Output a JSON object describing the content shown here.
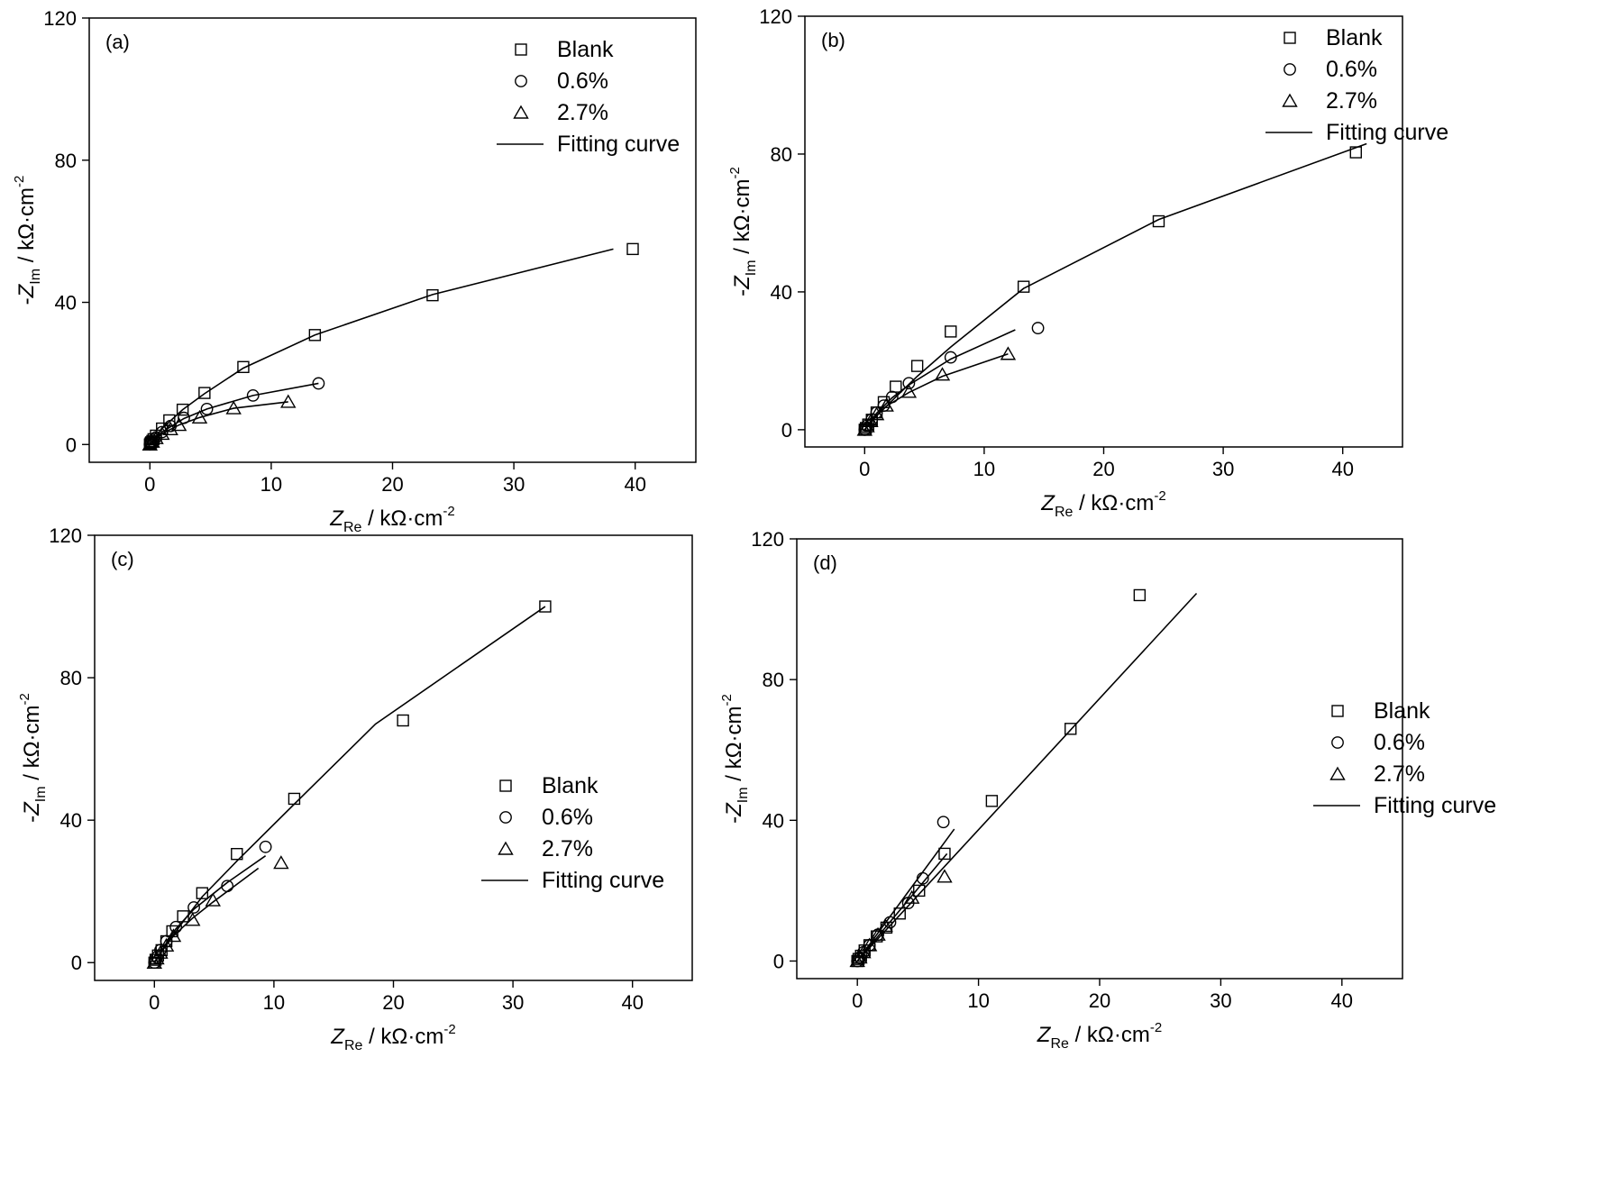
{
  "chart_data": [
    {
      "type": "scatter",
      "panel_label": "(a)",
      "xlabel": {
        "main": "Z",
        "sub": "Re",
        "unit": " / kΩ·cm",
        "sup": "-2"
      },
      "ylabel": {
        "prefix": "-",
        "main": "Z",
        "sub": "Im",
        "unit": " / kΩ·cm",
        "sup": "-2"
      },
      "xlim": [
        -5,
        45
      ],
      "ylim": [
        -5,
        120
      ],
      "xticks": [
        0,
        10,
        20,
        30,
        40
      ],
      "yticks": [
        0,
        40,
        80,
        120
      ],
      "legend": {
        "position": "top-right",
        "entries": [
          "Blank",
          "0.6%",
          "2.7%",
          "Fitting curve"
        ]
      },
      "series": [
        {
          "name": "Blank",
          "marker": "square",
          "x": [
            0.0,
            0.05,
            0.1,
            0.2,
            0.3,
            0.5,
            1.0,
            1.6,
            2.7,
            4.5,
            7.7,
            13.6,
            23.3,
            39.8
          ],
          "y": [
            0.0,
            0.3,
            0.6,
            1.0,
            1.5,
            2.5,
            4.5,
            6.8,
            9.8,
            14.5,
            21.8,
            30.8,
            42.0,
            55.0
          ],
          "fit_x": [
            0,
            1,
            2.7,
            4.5,
            7.7,
            13.6,
            23.3,
            38.2
          ],
          "fit_y": [
            0,
            4.5,
            9.8,
            14.3,
            21.5,
            30.8,
            42.2,
            55.0
          ]
        },
        {
          "name": "0.6%",
          "marker": "circle",
          "x": [
            0.0,
            0.2,
            0.5,
            1.0,
            1.7,
            2.8,
            4.7,
            8.5,
            13.9
          ],
          "y": [
            0.0,
            1.0,
            2.0,
            3.5,
            5.2,
            7.5,
            10.0,
            13.8,
            17.2
          ],
          "fit_x": [
            0,
            1.0,
            2.8,
            4.7,
            8.5,
            13.9
          ],
          "fit_y": [
            0,
            3.5,
            7.3,
            10.0,
            13.8,
            17.2
          ]
        },
        {
          "name": "2.7%",
          "marker": "triangle",
          "x": [
            0.0,
            0.2,
            0.5,
            1.0,
            1.7,
            2.4,
            4.1,
            6.9,
            11.4
          ],
          "y": [
            0.0,
            0.8,
            1.8,
            3.0,
            4.3,
            5.5,
            7.6,
            10.2,
            12.0
          ],
          "fit_x": [
            0,
            1.0,
            2.4,
            4.1,
            6.9,
            11.4
          ],
          "fit_y": [
            0,
            3.0,
            5.5,
            7.6,
            10.2,
            12.0
          ]
        }
      ]
    },
    {
      "type": "scatter",
      "panel_label": "(b)",
      "xlabel": {
        "main": "Z",
        "sub": "Re",
        "unit": " / kΩ·cm",
        "sup": "-2"
      },
      "ylabel": {
        "prefix": "-",
        "main": "Z",
        "sub": "Im",
        "unit": " / kΩ·cm",
        "sup": "-2"
      },
      "xlim": [
        -5,
        45
      ],
      "ylim": [
        -5,
        120
      ],
      "xticks": [
        0,
        10,
        20,
        30,
        40
      ],
      "yticks": [
        0,
        40,
        80,
        120
      ],
      "legend": {
        "position": "top-right",
        "entries": [
          "Blank",
          "0.6%",
          "2.7%",
          "Fitting curve"
        ]
      },
      "series": [
        {
          "name": "Blank",
          "marker": "square",
          "x": [
            0.0,
            0.1,
            0.3,
            0.6,
            1.0,
            1.6,
            2.6,
            4.4,
            7.2,
            13.3,
            24.6,
            41.1
          ],
          "y": [
            0.0,
            0.5,
            1.5,
            2.9,
            5.0,
            8.0,
            12.5,
            18.5,
            28.5,
            41.5,
            60.5,
            80.5
          ],
          "fit_x": [
            0,
            1.0,
            2.6,
            4.4,
            7.2,
            13.3,
            24.6,
            42.0
          ],
          "fit_y": [
            0,
            4.0,
            9.5,
            15.5,
            24.0,
            41.0,
            61.0,
            83.0
          ]
        },
        {
          "name": "0.6%",
          "marker": "circle",
          "x": [
            0.0,
            0.2,
            0.6,
            1.0,
            1.6,
            2.3,
            3.7,
            7.2,
            14.5
          ],
          "y": [
            0.0,
            1.2,
            3.0,
            5.0,
            7.0,
            9.5,
            13.5,
            21.0,
            29.5
          ],
          "fit_x": [
            0,
            1.0,
            2.3,
            3.7,
            7.2,
            12.6
          ],
          "fit_y": [
            0,
            4.8,
            9.3,
            13.0,
            20.5,
            29.0
          ]
        },
        {
          "name": "2.7%",
          "marker": "triangle",
          "x": [
            0.0,
            0.2,
            0.5,
            1.0,
            1.8,
            3.7,
            6.5,
            12.0
          ],
          "y": [
            0.0,
            1.0,
            2.5,
            4.5,
            7.0,
            11.0,
            16.0,
            22.0
          ],
          "fit_x": [
            0,
            1.0,
            1.8,
            3.7,
            6.5,
            12.0
          ],
          "fit_y": [
            0,
            4.2,
            6.8,
            10.8,
            15.5,
            22.0
          ]
        }
      ]
    },
    {
      "type": "scatter",
      "panel_label": "(c)",
      "xlabel": {
        "main": "Z",
        "sub": "Re",
        "unit": " / kΩ·cm",
        "sup": "-2"
      },
      "ylabel": {
        "prefix": "-",
        "main": "Z",
        "sub": "Im",
        "unit": " / kΩ·cm",
        "sup": "-2"
      },
      "xlim": [
        -5,
        45
      ],
      "ylim": [
        -5,
        120
      ],
      "xticks": [
        0,
        10,
        20,
        30,
        40
      ],
      "yticks": [
        0,
        40,
        80,
        120
      ],
      "legend": {
        "position": "center-right",
        "entries": [
          "Blank",
          "0.6%",
          "2.7%",
          "Fitting curve"
        ]
      },
      "series": [
        {
          "name": "Blank",
          "marker": "square",
          "x": [
            0.0,
            0.1,
            0.3,
            0.6,
            1.0,
            1.5,
            2.4,
            4.0,
            6.9,
            11.7,
            20.8,
            32.7
          ],
          "y": [
            0.0,
            0.8,
            2.0,
            3.5,
            6.0,
            8.8,
            13.0,
            19.5,
            30.5,
            46.0,
            68.0,
            100.0
          ],
          "fit_x": [
            0,
            1.0,
            2.4,
            4.0,
            6.9,
            11.7,
            18.5,
            32.7
          ],
          "fit_y": [
            0,
            5.0,
            11.5,
            18.5,
            28.5,
            44.5,
            67.0,
            100.0
          ]
        },
        {
          "name": "0.6%",
          "marker": "circle",
          "x": [
            0.0,
            0.2,
            0.5,
            1.0,
            1.8,
            3.3,
            6.1,
            9.3
          ],
          "y": [
            0.0,
            1.5,
            3.5,
            6.0,
            10.0,
            15.5,
            21.5,
            32.5
          ],
          "fit_x": [
            0,
            1.0,
            1.8,
            3.3,
            6.1,
            9.3
          ],
          "fit_y": [
            0,
            5.5,
            9.5,
            15.0,
            22.5,
            30.0
          ]
        },
        {
          "name": "2.7%",
          "marker": "triangle",
          "x": [
            0.0,
            0.2,
            0.5,
            1.0,
            1.6,
            3.2,
            4.9,
            10.6
          ],
          "y": [
            0.0,
            1.2,
            2.8,
            4.8,
            7.5,
            12.0,
            17.5,
            28.0
          ],
          "fit_x": [
            0,
            1.0,
            1.6,
            3.2,
            4.9,
            8.7
          ],
          "fit_y": [
            0,
            5.0,
            7.5,
            12.5,
            17.0,
            26.5
          ]
        }
      ]
    },
    {
      "type": "scatter",
      "panel_label": "(d)",
      "xlabel": {
        "main": "Z",
        "sub": "Re",
        "unit": " / kΩ·cm",
        "sup": "-2"
      },
      "ylabel": {
        "prefix": "-",
        "main": "Z",
        "sub": "Im",
        "unit": " / kΩ·cm",
        "sup": "-2"
      },
      "xlim": [
        -5,
        45
      ],
      "ylim": [
        -5,
        120
      ],
      "xticks": [
        0,
        10,
        20,
        30,
        40
      ],
      "yticks": [
        0,
        40,
        80,
        120
      ],
      "legend": {
        "position": "center-right",
        "entries": [
          "Blank",
          "0.6%",
          "2.7%",
          "Fitting curve"
        ]
      },
      "series": [
        {
          "name": "Blank",
          "marker": "square",
          "x": [
            0.0,
            0.1,
            0.3,
            0.6,
            1.0,
            1.6,
            2.4,
            3.5,
            5.1,
            7.2,
            11.1,
            17.6,
            23.3
          ],
          "y": [
            0.0,
            0.6,
            1.5,
            3.0,
            4.5,
            7.0,
            9.5,
            13.5,
            20.0,
            30.5,
            45.5,
            66.0,
            104.0
          ],
          "fit_x": [
            0,
            28.0
          ],
          "fit_y": [
            0,
            104.5
          ]
        },
        {
          "name": "0.6%",
          "marker": "circle",
          "x": [
            0.0,
            0.2,
            0.5,
            1.0,
            1.7,
            2.7,
            4.2,
            5.4,
            7.1
          ],
          "y": [
            0.0,
            1.0,
            2.5,
            4.5,
            7.5,
            11.0,
            16.5,
            23.5,
            39.5
          ],
          "fit_x": [
            0,
            8.0
          ],
          "fit_y": [
            0,
            37.5
          ]
        },
        {
          "name": "2.7%",
          "marker": "triangle",
          "x": [
            0.0,
            0.2,
            0.5,
            1.0,
            1.7,
            2.3,
            4.5,
            7.2
          ],
          "y": [
            0.0,
            1.0,
            2.5,
            4.5,
            7.5,
            10.0,
            18.0,
            24.0
          ],
          "fit_x": [
            0,
            7.4
          ],
          "fit_y": [
            0,
            30.5
          ]
        }
      ]
    }
  ]
}
